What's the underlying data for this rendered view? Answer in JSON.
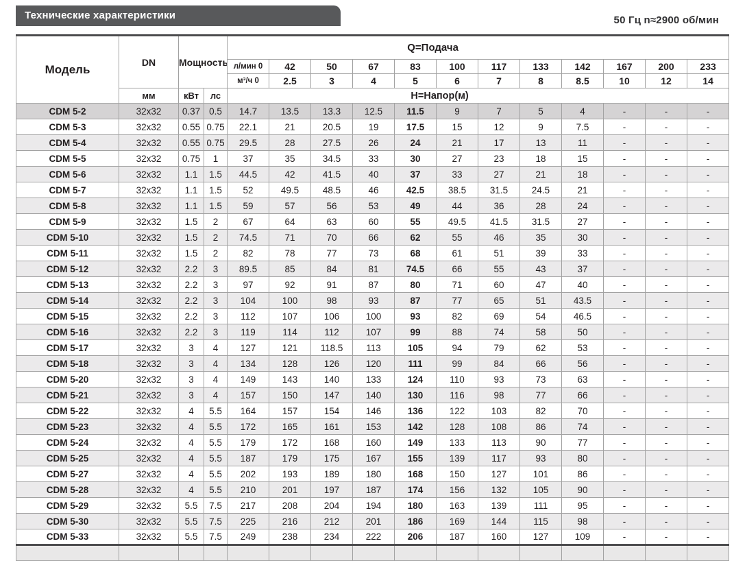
{
  "header": {
    "title": "Технические характеристики",
    "frequency_note": "50 Гц  n≈2900 об/мин"
  },
  "table": {
    "model_label": "Модель",
    "dn_label": "DN",
    "power_label": "Мощность",
    "q_label": "Q=Подача",
    "h_label": "Н=Напор(м)",
    "mm_label": "мм",
    "kw_label": "кВт",
    "hp_label": "лс",
    "lmin_label": "л/мин 0",
    "m3h_label": "м³/ч 0",
    "flow_lmin": [
      "42",
      "50",
      "67",
      "83",
      "100",
      "117",
      "133",
      "142",
      "167",
      "200",
      "233"
    ],
    "flow_m3h": [
      "2.5",
      "3",
      "4",
      "5",
      "6",
      "7",
      "8",
      "8.5",
      "10",
      "12",
      "14"
    ],
    "rows": [
      {
        "model": "CDM 5-2",
        "dn": "32x32",
        "kw": "0.37",
        "hp": "0.5",
        "head": [
          "14.7",
          "13.5",
          "13.3",
          "12.5",
          "11.5",
          "9",
          "7",
          "5",
          "4",
          "-",
          "-",
          "-"
        ]
      },
      {
        "model": "CDM 5-3",
        "dn": "32x32",
        "kw": "0.55",
        "hp": "0.75",
        "head": [
          "22.1",
          "21",
          "20.5",
          "19",
          "17.5",
          "15",
          "12",
          "9",
          "7.5",
          "-",
          "-",
          "-"
        ]
      },
      {
        "model": "CDM 5-4",
        "dn": "32x32",
        "kw": "0.55",
        "hp": "0.75",
        "head": [
          "29.5",
          "28",
          "27.5",
          "26",
          "24",
          "21",
          "17",
          "13",
          "11",
          "-",
          "-",
          "-"
        ]
      },
      {
        "model": "CDM 5-5",
        "dn": "32x32",
        "kw": "0.75",
        "hp": "1",
        "head": [
          "37",
          "35",
          "34.5",
          "33",
          "30",
          "27",
          "23",
          "18",
          "15",
          "-",
          "-",
          "-"
        ]
      },
      {
        "model": "CDM 5-6",
        "dn": "32x32",
        "kw": "1.1",
        "hp": "1.5",
        "head": [
          "44.5",
          "42",
          "41.5",
          "40",
          "37",
          "33",
          "27",
          "21",
          "18",
          "-",
          "-",
          "-"
        ]
      },
      {
        "model": "CDM 5-7",
        "dn": "32x32",
        "kw": "1.1",
        "hp": "1.5",
        "head": [
          "52",
          "49.5",
          "48.5",
          "46",
          "42.5",
          "38.5",
          "31.5",
          "24.5",
          "21",
          "-",
          "-",
          "-"
        ]
      },
      {
        "model": "CDM 5-8",
        "dn": "32x32",
        "kw": "1.1",
        "hp": "1.5",
        "head": [
          "59",
          "57",
          "56",
          "53",
          "49",
          "44",
          "36",
          "28",
          "24",
          "-",
          "-",
          "-"
        ]
      },
      {
        "model": "CDM 5-9",
        "dn": "32x32",
        "kw": "1.5",
        "hp": "2",
        "head": [
          "67",
          "64",
          "63",
          "60",
          "55",
          "49.5",
          "41.5",
          "31.5",
          "27",
          "-",
          "-",
          "-"
        ]
      },
      {
        "model": "CDM 5-10",
        "dn": "32x32",
        "kw": "1.5",
        "hp": "2",
        "head": [
          "74.5",
          "71",
          "70",
          "66",
          "62",
          "55",
          "46",
          "35",
          "30",
          "-",
          "-",
          "-"
        ]
      },
      {
        "model": "CDM 5-11",
        "dn": "32x32",
        "kw": "1.5",
        "hp": "2",
        "head": [
          "82",
          "78",
          "77",
          "73",
          "68",
          "61",
          "51",
          "39",
          "33",
          "-",
          "-",
          "-"
        ]
      },
      {
        "model": "CDM 5-12",
        "dn": "32x32",
        "kw": "2.2",
        "hp": "3",
        "head": [
          "89.5",
          "85",
          "84",
          "81",
          "74.5",
          "66",
          "55",
          "43",
          "37",
          "-",
          "-",
          "-"
        ]
      },
      {
        "model": "CDM 5-13",
        "dn": "32x32",
        "kw": "2.2",
        "hp": "3",
        "head": [
          "97",
          "92",
          "91",
          "87",
          "80",
          "71",
          "60",
          "47",
          "40",
          "-",
          "-",
          "-"
        ]
      },
      {
        "model": "CDM 5-14",
        "dn": "32x32",
        "kw": "2.2",
        "hp": "3",
        "head": [
          "104",
          "100",
          "98",
          "93",
          "87",
          "77",
          "65",
          "51",
          "43.5",
          "-",
          "-",
          "-"
        ]
      },
      {
        "model": "CDM 5-15",
        "dn": "32x32",
        "kw": "2.2",
        "hp": "3",
        "head": [
          "112",
          "107",
          "106",
          "100",
          "93",
          "82",
          "69",
          "54",
          "46.5",
          "-",
          "-",
          "-"
        ]
      },
      {
        "model": "CDM 5-16",
        "dn": "32x32",
        "kw": "2.2",
        "hp": "3",
        "head": [
          "119",
          "114",
          "112",
          "107",
          "99",
          "88",
          "74",
          "58",
          "50",
          "-",
          "-",
          "-"
        ]
      },
      {
        "model": "CDM 5-17",
        "dn": "32x32",
        "kw": "3",
        "hp": "4",
        "head": [
          "127",
          "121",
          "118.5",
          "113",
          "105",
          "94",
          "79",
          "62",
          "53",
          "-",
          "-",
          "-"
        ]
      },
      {
        "model": "CDM 5-18",
        "dn": "32x32",
        "kw": "3",
        "hp": "4",
        "head": [
          "134",
          "128",
          "126",
          "120",
          "111",
          "99",
          "84",
          "66",
          "56",
          "-",
          "-",
          "-"
        ]
      },
      {
        "model": "CDM 5-20",
        "dn": "32x32",
        "kw": "3",
        "hp": "4",
        "head": [
          "149",
          "143",
          "140",
          "133",
          "124",
          "110",
          "93",
          "73",
          "63",
          "-",
          "-",
          "-"
        ]
      },
      {
        "model": "CDM 5-21",
        "dn": "32x32",
        "kw": "3",
        "hp": "4",
        "head": [
          "157",
          "150",
          "147",
          "140",
          "130",
          "116",
          "98",
          "77",
          "66",
          "-",
          "-",
          "-"
        ]
      },
      {
        "model": "CDM 5-22",
        "dn": "32x32",
        "kw": "4",
        "hp": "5.5",
        "head": [
          "164",
          "157",
          "154",
          "146",
          "136",
          "122",
          "103",
          "82",
          "70",
          "-",
          "-",
          "-"
        ]
      },
      {
        "model": "CDM 5-23",
        "dn": "32x32",
        "kw": "4",
        "hp": "5.5",
        "head": [
          "172",
          "165",
          "161",
          "153",
          "142",
          "128",
          "108",
          "86",
          "74",
          "-",
          "-",
          "-"
        ]
      },
      {
        "model": "CDM 5-24",
        "dn": "32x32",
        "kw": "4",
        "hp": "5.5",
        "head": [
          "179",
          "172",
          "168",
          "160",
          "149",
          "133",
          "113",
          "90",
          "77",
          "-",
          "-",
          "-"
        ]
      },
      {
        "model": "CDM 5-25",
        "dn": "32x32",
        "kw": "4",
        "hp": "5.5",
        "head": [
          "187",
          "179",
          "175",
          "167",
          "155",
          "139",
          "117",
          "93",
          "80",
          "-",
          "-",
          "-"
        ]
      },
      {
        "model": "CDM 5-27",
        "dn": "32x32",
        "kw": "4",
        "hp": "5.5",
        "head": [
          "202",
          "193",
          "189",
          "180",
          "168",
          "150",
          "127",
          "101",
          "86",
          "-",
          "-",
          "-"
        ]
      },
      {
        "model": "CDM 5-28",
        "dn": "32x32",
        "kw": "4",
        "hp": "5.5",
        "head": [
          "210",
          "201",
          "197",
          "187",
          "174",
          "156",
          "132",
          "105",
          "90",
          "-",
          "-",
          "-"
        ]
      },
      {
        "model": "CDM 5-29",
        "dn": "32x32",
        "kw": "5.5",
        "hp": "7.5",
        "head": [
          "217",
          "208",
          "204",
          "194",
          "180",
          "163",
          "139",
          "111",
          "95",
          "-",
          "-",
          "-"
        ]
      },
      {
        "model": "CDM 5-30",
        "dn": "32x32",
        "kw": "5.5",
        "hp": "7.5",
        "head": [
          "225",
          "216",
          "212",
          "201",
          "186",
          "169",
          "144",
          "115",
          "98",
          "-",
          "-",
          "-"
        ]
      },
      {
        "model": "CDM 5-33",
        "dn": "32x32",
        "kw": "5.5",
        "hp": "7.5",
        "head": [
          "249",
          "238",
          "234",
          "222",
          "206",
          "187",
          "160",
          "127",
          "109",
          "-",
          "-",
          "-"
        ]
      }
    ]
  },
  "colors": {
    "title_bar": "#58595b",
    "highlight_row": "#d5d3d4",
    "stripe_row": "#ebeaeb",
    "unit_strip": "#e7e6e6",
    "text": "#231f20"
  }
}
